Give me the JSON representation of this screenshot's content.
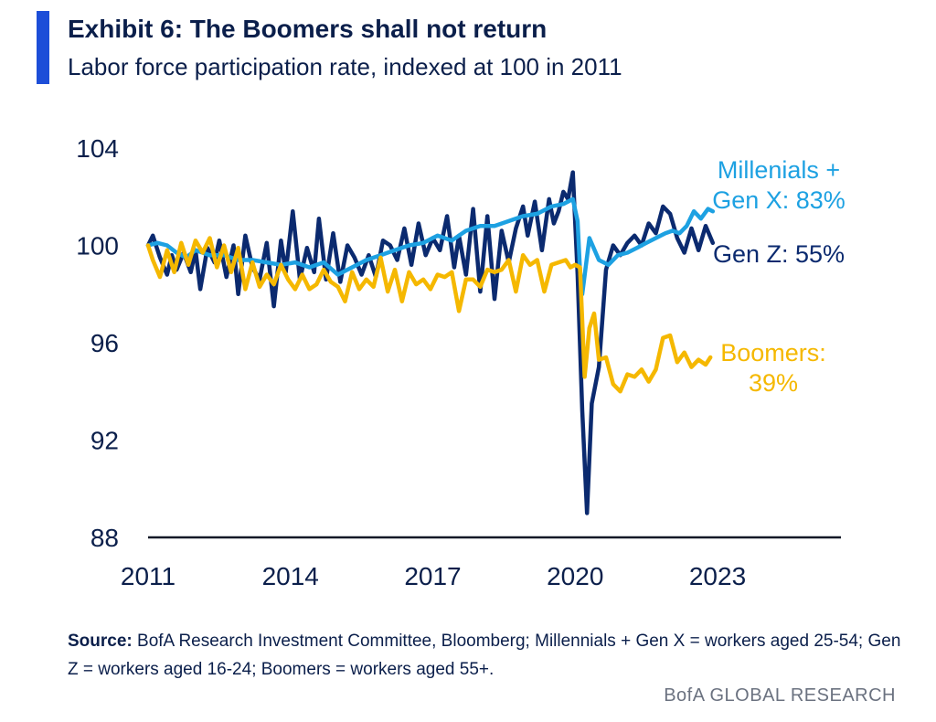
{
  "header": {
    "title": "Exhibit 6: The Boomers shall not return",
    "subtitle": "Labor force participation rate, indexed at 100 in 2011"
  },
  "source": {
    "label": "Source:",
    "text": "BofA Research Investment Committee, Bloomberg; Millennials + Gen X = workers aged 25-54; Gen Z = workers aged 16-24; Boomers = workers aged 55+."
  },
  "footer": {
    "brand": "BofA GLOBAL RESEARCH"
  },
  "chart_data": {
    "type": "line",
    "title": "Exhibit 6: The Boomers shall not return",
    "subtitle": "Labor force participation rate, indexed at 100 in 2011",
    "xlabel": "",
    "ylabel": "",
    "xlim": [
      2011,
      2025.6
    ],
    "ylim": [
      88,
      104
    ],
    "x_ticks": [
      2011,
      2014,
      2017,
      2020,
      2023
    ],
    "y_ticks": [
      88,
      92,
      96,
      100,
      104
    ],
    "grid": false,
    "series": [
      {
        "name": "Gen Z: 55%",
        "color": "#0b2a6f",
        "x": [
          2011.0,
          2011.1,
          2011.25,
          2011.4,
          2011.5,
          2011.6,
          2011.75,
          2011.9,
          2012.0,
          2012.1,
          2012.25,
          2012.4,
          2012.5,
          2012.65,
          2012.8,
          2012.9,
          2013.05,
          2013.2,
          2013.35,
          2013.5,
          2013.65,
          2013.8,
          2013.9,
          2014.05,
          2014.2,
          2014.35,
          2014.5,
          2014.6,
          2014.75,
          2014.9,
          2015.05,
          2015.2,
          2015.35,
          2015.5,
          2015.65,
          2015.8,
          2015.95,
          2016.1,
          2016.25,
          2016.4,
          2016.55,
          2016.7,
          2016.85,
          2017.0,
          2017.15,
          2017.3,
          2017.45,
          2017.55,
          2017.7,
          2017.85,
          2018.0,
          2018.15,
          2018.3,
          2018.45,
          2018.6,
          2018.75,
          2018.9,
          2019.0,
          2019.15,
          2019.3,
          2019.45,
          2019.55,
          2019.65,
          2019.75,
          2019.85,
          2019.95,
          2020.05,
          2020.15,
          2020.25,
          2020.35,
          2020.5,
          2020.65,
          2020.8,
          2020.95,
          2021.1,
          2021.25,
          2021.4,
          2021.55,
          2021.7,
          2021.85,
          2022.0,
          2022.15,
          2022.3,
          2022.45,
          2022.6,
          2022.75,
          2022.9
        ],
        "values": [
          100.0,
          100.4,
          99.5,
          98.8,
          99.6,
          99.0,
          99.7,
          98.9,
          99.8,
          98.2,
          99.9,
          99.3,
          100.2,
          98.7,
          100.0,
          98.0,
          100.4,
          99.1,
          98.6,
          100.1,
          97.5,
          100.2,
          98.9,
          101.4,
          98.6,
          99.9,
          98.9,
          101.1,
          98.6,
          100.5,
          98.5,
          100.0,
          99.5,
          98.8,
          99.6,
          98.7,
          100.2,
          100.0,
          99.4,
          100.7,
          99.2,
          100.9,
          99.6,
          100.3,
          99.8,
          101.2,
          99.1,
          100.4,
          98.8,
          101.5,
          98.1,
          101.2,
          97.8,
          100.6,
          99.3,
          100.7,
          101.6,
          100.4,
          101.8,
          99.8,
          101.9,
          100.9,
          101.4,
          102.2,
          101.9,
          103.0,
          98.8,
          93.2,
          89.0,
          93.5,
          95.0,
          99.0,
          100.0,
          99.6,
          100.1,
          100.4,
          100.0,
          100.9,
          100.5,
          101.6,
          101.3,
          100.3,
          99.7,
          100.7,
          99.8,
          100.8,
          100.1
        ]
      },
      {
        "name": "Millenials + Gen X: 83%",
        "color": "#1da1e2",
        "x": [
          2011.0,
          2011.2,
          2011.4,
          2011.6,
          2011.8,
          2012.0,
          2012.3,
          2012.6,
          2012.9,
          2013.2,
          2013.5,
          2013.8,
          2014.1,
          2014.4,
          2014.7,
          2015.0,
          2015.3,
          2015.6,
          2015.9,
          2016.2,
          2016.5,
          2016.8,
          2017.1,
          2017.4,
          2017.7,
          2018.0,
          2018.3,
          2018.6,
          2018.9,
          2019.2,
          2019.5,
          2019.75,
          2019.95,
          2020.05,
          2020.1,
          2020.15,
          2020.3,
          2020.5,
          2020.7,
          2020.9,
          2021.1,
          2021.3,
          2021.5,
          2021.7,
          2021.9,
          2022.05,
          2022.2,
          2022.35,
          2022.5,
          2022.65,
          2022.8,
          2022.9
        ],
        "values": [
          100.0,
          100.1,
          100.0,
          99.7,
          99.5,
          99.8,
          99.6,
          99.6,
          99.4,
          99.4,
          99.3,
          99.2,
          99.3,
          99.1,
          99.3,
          98.8,
          99.1,
          99.4,
          99.6,
          99.8,
          100.0,
          100.1,
          100.4,
          100.2,
          100.6,
          100.8,
          100.8,
          101.0,
          101.2,
          101.3,
          101.6,
          101.7,
          101.9,
          101.0,
          99.0,
          98.0,
          100.3,
          99.4,
          99.2,
          99.6,
          99.7,
          99.9,
          100.1,
          100.3,
          100.5,
          100.6,
          100.5,
          100.8,
          101.4,
          101.1,
          101.5,
          101.4
        ]
      },
      {
        "name": "Boomers: 39%",
        "color": "#f5b800",
        "x": [
          2011.0,
          2011.1,
          2011.25,
          2011.4,
          2011.55,
          2011.7,
          2011.85,
          2012.0,
          2012.15,
          2012.3,
          2012.45,
          2012.6,
          2012.75,
          2012.9,
          2013.05,
          2013.2,
          2013.35,
          2013.5,
          2013.65,
          2013.8,
          2013.95,
          2014.1,
          2014.25,
          2014.4,
          2014.55,
          2014.7,
          2014.85,
          2015.0,
          2015.15,
          2015.3,
          2015.45,
          2015.6,
          2015.75,
          2015.9,
          2016.05,
          2016.2,
          2016.35,
          2016.5,
          2016.65,
          2016.8,
          2016.95,
          2017.1,
          2017.25,
          2017.4,
          2017.55,
          2017.7,
          2017.85,
          2018.0,
          2018.15,
          2018.3,
          2018.45,
          2018.6,
          2018.75,
          2018.9,
          2019.05,
          2019.2,
          2019.35,
          2019.5,
          2019.65,
          2019.8,
          2019.9,
          2020.0,
          2020.1,
          2020.2,
          2020.3,
          2020.4,
          2020.5,
          2020.65,
          2020.8,
          2020.95,
          2021.1,
          2021.25,
          2021.4,
          2021.55,
          2021.7,
          2021.85,
          2022.0,
          2022.15,
          2022.3,
          2022.45,
          2022.6,
          2022.75,
          2022.85
        ],
        "values": [
          100.0,
          99.4,
          98.7,
          99.8,
          98.9,
          100.1,
          99.2,
          100.2,
          99.7,
          100.3,
          99.1,
          100.0,
          98.9,
          99.9,
          98.2,
          99.3,
          98.3,
          98.8,
          98.4,
          99.2,
          98.6,
          98.2,
          98.8,
          98.2,
          98.4,
          99.0,
          98.5,
          98.3,
          97.7,
          98.9,
          98.2,
          98.6,
          98.3,
          99.5,
          98.1,
          99.0,
          97.7,
          98.9,
          98.4,
          98.6,
          98.2,
          98.8,
          98.7,
          98.9,
          97.3,
          98.6,
          98.6,
          98.3,
          99.0,
          98.9,
          99.0,
          99.4,
          98.1,
          99.6,
          99.2,
          99.4,
          98.1,
          99.2,
          99.3,
          99.4,
          99.1,
          99.2,
          99.1,
          94.6,
          96.6,
          97.2,
          95.3,
          95.4,
          94.3,
          94.0,
          94.7,
          94.6,
          94.9,
          94.4,
          94.9,
          96.2,
          96.3,
          95.2,
          95.6,
          95.0,
          95.3,
          95.1,
          95.4
        ]
      }
    ],
    "annotations": [
      {
        "lines": [
          "Millenials +",
          "Gen X: 83%"
        ],
        "color": "#1da1e2"
      },
      {
        "lines": [
          "Gen Z: 55%"
        ],
        "color": "#0b2a6f"
      },
      {
        "lines": [
          "Boomers:",
          "39%"
        ],
        "color": "#f5b800"
      }
    ]
  }
}
